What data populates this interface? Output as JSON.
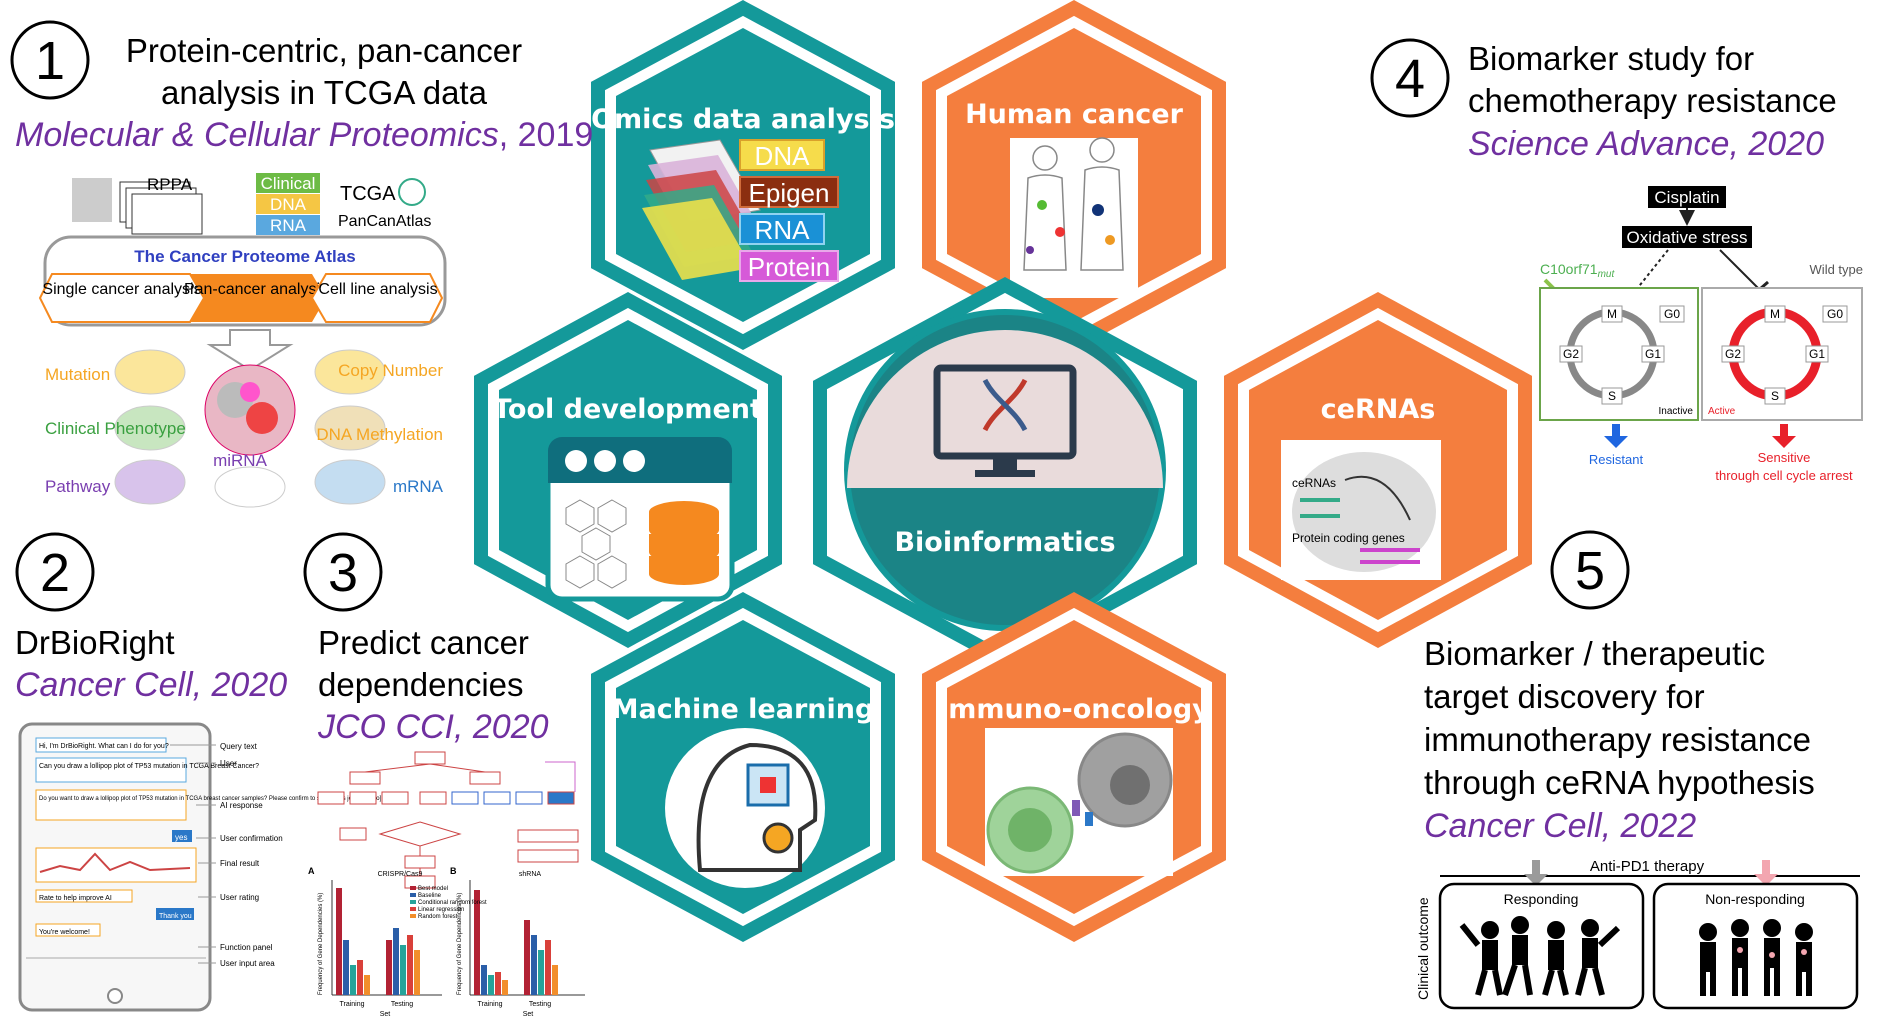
{
  "center": {
    "label": "Bioinformatics"
  },
  "hexagons": [
    {
      "id": "omics",
      "title": "Omics data analysis",
      "items": [
        "DNA",
        "Epigen",
        "RNA",
        "Protein"
      ],
      "color": "#14999a"
    },
    {
      "id": "human",
      "title": "Human cancer",
      "color": "#f47e3e"
    },
    {
      "id": "tool",
      "title": "Tool development",
      "color": "#14999a"
    },
    {
      "id": "cerna",
      "title": "ceRNAs",
      "color": "#f47e3e"
    },
    {
      "id": "ml",
      "title": "Machine learning",
      "color": "#14999a"
    },
    {
      "id": "immuno",
      "title": "Immuno-oncology",
      "color": "#f47e3e"
    }
  ],
  "studies": [
    {
      "num": "1",
      "title_lines": [
        "Protein-centric, pan-cancer",
        "analysis in TCGA data"
      ],
      "journal": "Molecular & Cellular Proteomics",
      "year": ", 2019"
    },
    {
      "num": "2",
      "title_lines": [
        "DrBioRight"
      ],
      "journal": "Cancer Cell, 2020"
    },
    {
      "num": "3",
      "title_lines": [
        "Predict cancer",
        "dependencies"
      ],
      "journal": "JCO CCI, 2020"
    },
    {
      "num": "4",
      "title_lines": [
        "Biomarker study for",
        "chemotherapy resistance"
      ],
      "journal": "Science Advance, 2020"
    },
    {
      "num": "5",
      "title_lines": [
        "Biomarker / therapeutic",
        "target discovery for",
        "immunotherapy resistance",
        "through ceRNA hypothesis"
      ],
      "journal": "Cancer Cell, 2022"
    }
  ],
  "fig1": {
    "rppa": "RPPA",
    "clinical": "Clinical",
    "dna": "DNA",
    "rna": "RNA",
    "tcga": "TCGA",
    "pancan": "PanCanAtlas",
    "tcpa": "The Cancer Proteome Atlas",
    "tabs": [
      "Single cancer analysis",
      "Pan-cancer analysis",
      "Cell line analysis"
    ],
    "left_labels": [
      "Mutation",
      "Clinical Phenotype",
      "Pathway"
    ],
    "right_labels": [
      "Copy Number",
      "DNA Methylation",
      "mRNA"
    ],
    "center_label": "miRNA"
  },
  "fig2": {
    "chat": [
      "Hi, I'm DrBioRight. What can I do for you?",
      "Can you draw a lollipop plot of TP53 mutation in TCGA Breast Cancer?",
      "Do you want to draw a lollipop plot of TP53 mutation in TCGA breast cancer samples? Please confirm to submit this job. [yes, no]",
      "yes",
      "Rate to help improve AI",
      "Thank you",
      "You're welcome!"
    ],
    "annotations": [
      "Query text",
      "User",
      "AI response",
      "User confirmation",
      "Final result",
      "User rating",
      "Function panel",
      "User input area"
    ]
  },
  "fig3": {
    "panels": [
      "A",
      "B"
    ],
    "panel_titles": [
      "CRISPR/Cas9",
      "shRNA"
    ],
    "xlabel": "Set",
    "ylabel": "Frequency of Gene Dependencies (%)",
    "groups": [
      "Training",
      "Testing"
    ],
    "legend": [
      "Best model",
      "Baseline",
      "Conditional random forest",
      "Linear regression",
      "Random forest"
    ]
  },
  "fig4": {
    "cisplatin": "Cisplatin",
    "oxidative": "Oxidative stress",
    "mut_label": "C10orf71",
    "mut_sub": "mut",
    "wild": "Wild type",
    "phases": [
      "M",
      "G0",
      "G2",
      "G1",
      "S"
    ],
    "inactive": "Inactive",
    "active": "Active",
    "resistant": "Resistant",
    "sensitive": "Sensitive",
    "arrest": "through cell cycle arrest"
  },
  "fig5": {
    "therapy": "Anti-PD1 therapy",
    "responding": "Responding",
    "nonresponding": "Non-responding",
    "outcome": "Clinical outcome"
  },
  "cerna_fig": {
    "label": "ceRNAs",
    "genes": "Protein coding genes"
  }
}
